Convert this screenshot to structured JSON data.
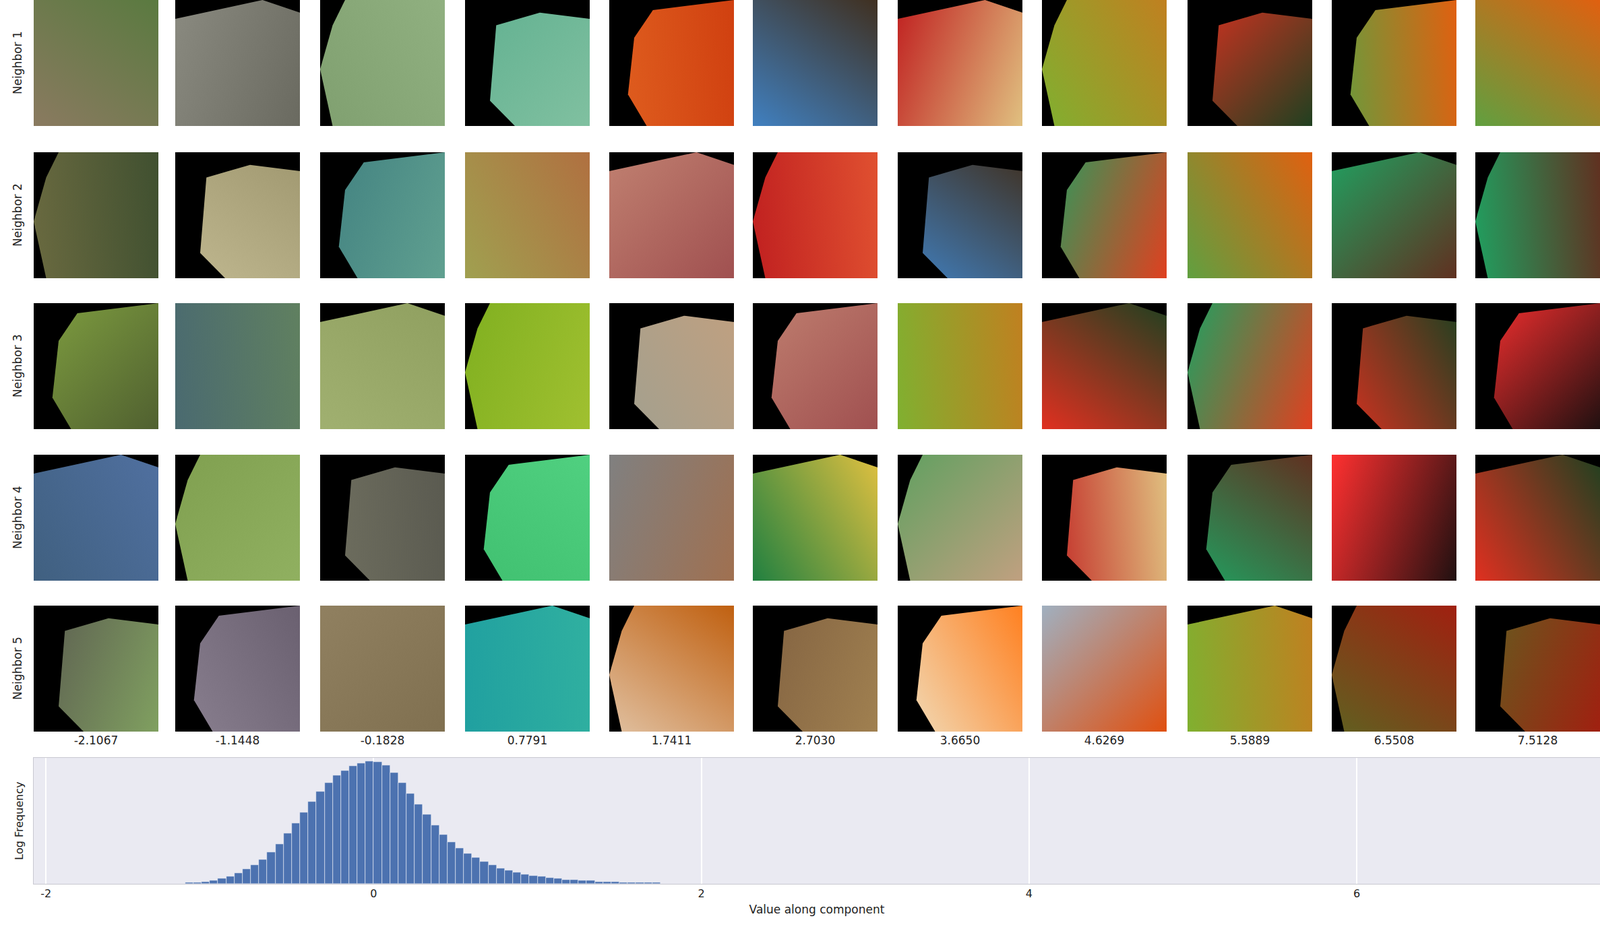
{
  "image_grid": {
    "row_labels": [
      "Neighbor 1",
      "Neighbor 2",
      "Neighbor 3",
      "Neighbor 4",
      "Neighbor 5"
    ],
    "column_labels": [
      "-2.1067",
      "-1.1448",
      "-0.1828",
      "0.7791",
      "1.7411",
      "2.7030",
      "3.6650",
      "4.6269",
      "5.5889",
      "6.5508",
      "7.5128"
    ],
    "patch_colors": [
      [
        [
          "#8a7a60",
          "#5a7a40"
        ],
        [
          "#8a8a80",
          "#6a6a60"
        ],
        [
          "#80a070",
          "#90b080"
        ],
        [
          "#60b090",
          "#80c0a0"
        ],
        [
          "#e06020",
          "#d04010"
        ],
        [
          "#4080c0",
          "#403020"
        ],
        [
          "#c02020",
          "#e0c080"
        ],
        [
          "#80b030",
          "#c08020"
        ],
        [
          "#e03020",
          "#204020"
        ],
        [
          "#60a040",
          "#e06010"
        ],
        [
          "#60a040",
          "#e06010"
        ]
      ],
      [
        [
          "#6a6a40",
          "#405030"
        ],
        [
          "#c0b890",
          "#a09870"
        ],
        [
          "#408080",
          "#60a090"
        ],
        [
          "#a0a050",
          "#b07040"
        ],
        [
          "#c08070",
          "#a05050"
        ],
        [
          "#c02020",
          "#e05030"
        ],
        [
          "#4080c0",
          "#403020"
        ],
        [
          "#20a060",
          "#e04020"
        ],
        [
          "#60a040",
          "#e06010"
        ],
        [
          "#20a060",
          "#603020"
        ],
        [
          "#20a060",
          "#603020"
        ]
      ],
      [
        [
          "#80a040",
          "#506030"
        ],
        [
          "#4a6a70",
          "#608060"
        ],
        [
          "#a0b070",
          "#90a060"
        ],
        [
          "#80b020",
          "#a0c030"
        ],
        [
          "#a0a090",
          "#c0a080"
        ],
        [
          "#c08070",
          "#a05050"
        ],
        [
          "#80b030",
          "#c08020"
        ],
        [
          "#e03020",
          "#204020"
        ],
        [
          "#20a060",
          "#e04020"
        ],
        [
          "#e03020",
          "#204020"
        ],
        [
          "#ff3030",
          "#201010"
        ]
      ],
      [
        [
          "#406080",
          "#5070a0"
        ],
        [
          "#80a050",
          "#90b060"
        ],
        [
          "#707060",
          "#5a5a50"
        ],
        [
          "#40c070",
          "#50d080"
        ],
        [
          "#808080",
          "#a07050"
        ],
        [
          "#208040",
          "#e0c040"
        ],
        [
          "#60a060",
          "#c0a080"
        ],
        [
          "#c02020",
          "#e0c080"
        ],
        [
          "#20a060",
          "#603020"
        ],
        [
          "#ff3030",
          "#201010"
        ],
        [
          "#e03020",
          "#204020"
        ]
      ],
      [
        [
          "#5a5a50",
          "#80a060"
        ],
        [
          "#8a8090",
          "#6a6070"
        ],
        [
          "#908060",
          "#807050"
        ],
        [
          "#20a0a0",
          "#30b0a0"
        ],
        [
          "#e0c0a0",
          "#c06010"
        ],
        [
          "#806040",
          "#a08050"
        ],
        [
          "#f0e0c0",
          "#ff8020"
        ],
        [
          "#a0b0c0",
          "#e05010"
        ],
        [
          "#80b030",
          "#c08020"
        ],
        [
          "#606020",
          "#a02010"
        ],
        [
          "#606020",
          "#a02010"
        ]
      ]
    ]
  },
  "chart_data": {
    "type": "histogram",
    "bins": [
      -1.15,
      -1.1,
      -1.05,
      -1,
      -0.95,
      -0.9,
      -0.85,
      -0.8,
      -0.75,
      -0.7,
      -0.65,
      -0.6,
      -0.55,
      -0.5,
      -0.45,
      -0.4,
      -0.35,
      -0.3,
      -0.25,
      -0.2,
      -0.15,
      -0.1,
      -0.05,
      0,
      0.05,
      0.1,
      0.15,
      0.2,
      0.25,
      0.3,
      0.35,
      0.4,
      0.45,
      0.5,
      0.55,
      0.6,
      0.65,
      0.7,
      0.75,
      0.8,
      0.85,
      0.9,
      0.95,
      1,
      1.05,
      1.1,
      1.15,
      1.2,
      1.25,
      1.3,
      1.35,
      1.4,
      1.45,
      1.5,
      1.55,
      1.6,
      1.65,
      1.7,
      1.75
    ],
    "values": [
      0.05,
      0.05,
      0.1,
      0.15,
      0.25,
      0.35,
      0.5,
      0.7,
      0.9,
      1.15,
      1.5,
      1.9,
      2.4,
      2.9,
      3.4,
      3.9,
      4.4,
      4.8,
      5.15,
      5.4,
      5.6,
      5.75,
      5.85,
      5.8,
      5.65,
      5.3,
      4.8,
      4.3,
      3.8,
      3.3,
      2.8,
      2.35,
      2.0,
      1.7,
      1.45,
      1.25,
      1.05,
      0.9,
      0.75,
      0.65,
      0.55,
      0.45,
      0.4,
      0.35,
      0.3,
      0.25,
      0.2,
      0.2,
      0.15,
      0.15,
      0.1,
      0.1,
      0.1,
      0.05,
      0.05,
      0.05,
      0.05,
      0.05
    ],
    "color": "#4c72b0",
    "xlabel": "Value along component",
    "ylabel": "Log Frequency",
    "xlim": [
      -2.075,
      7.485
    ],
    "xticks": [
      -2,
      0,
      2,
      4,
      6
    ],
    "ylim": [
      0,
      6
    ],
    "grid": true,
    "tick_labels": "x"
  }
}
